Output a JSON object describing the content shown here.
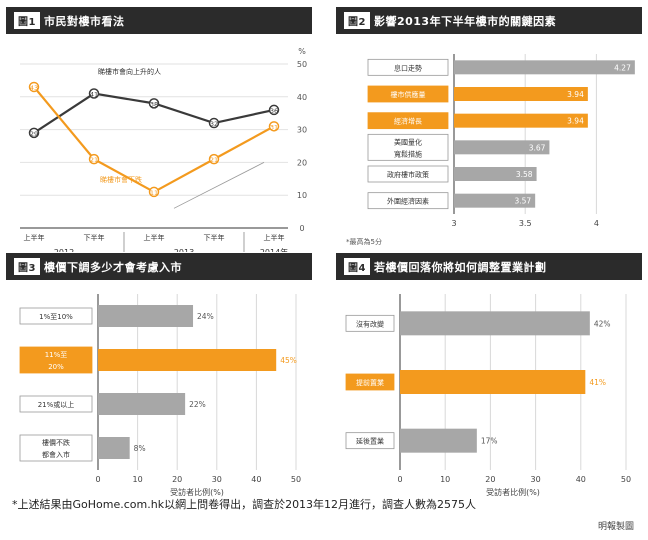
{
  "panel1": {
    "title_num": "圖1",
    "title": "市民對樓市看法",
    "unit": "%",
    "series_a_label": "睇樓市會向上升的人",
    "series_b_label": "睇樓市會下跌",
    "half_labels": [
      "上半年",
      "下半年",
      "上半年",
      "下半年",
      "上半年"
    ],
    "year_labels": [
      "2012",
      "2013",
      "2014年"
    ],
    "y_ticks": [
      "50",
      "40",
      "30",
      "20",
      "10",
      "0"
    ]
  },
  "panel2": {
    "title_num": "圖2",
    "title": "影響2013年下半年樓市的關鍵因素",
    "x_ticks": [
      "3",
      "3.5",
      "4"
    ],
    "note": "*最高為5分"
  },
  "panel3": {
    "title_num": "圖3",
    "title": "樓價下調多少才會考慮入市",
    "x_ticks": [
      "0",
      "10",
      "20",
      "30",
      "40",
      "50"
    ],
    "xlabel": "受訪者比例(%)"
  },
  "panel4": {
    "title_num": "圖4",
    "title": "若樓價回落你將如何調整置業計劃",
    "x_ticks": [
      "0",
      "10",
      "20",
      "30",
      "40",
      "50"
    ],
    "xlabel": "受訪者比例(%)"
  },
  "footer": {
    "note": "*上述結果由GoHome.com.hk以網上問卷得出，調查於2013年12月進行，調查人數為2575人",
    "credit": "明報製圖"
  },
  "colors": {
    "orange": "#f39a1e",
    "gray": "#a7a7a7",
    "dark": "#2b2b2b",
    "line_dark": "#3a3a3a"
  },
  "chart_data": [
    {
      "type": "line",
      "x": [
        "2012上半年",
        "2012下半年",
        "2013上半年",
        "2013下半年",
        "2014上半年"
      ],
      "ylim": [
        0,
        50
      ],
      "series": [
        {
          "name": "睇樓市會向上升的人",
          "values": [
            29,
            41,
            38,
            32,
            36
          ]
        },
        {
          "name": "睇樓市會下跌",
          "values": [
            43,
            21,
            11,
            21,
            31
          ]
        }
      ]
    },
    {
      "type": "bar",
      "categories": [
        "息口走勢",
        "樓市供應量",
        "經濟增長",
        "美國量化寬鬆措施",
        "政府樓市政策",
        "外圍經濟因素"
      ],
      "values": [
        4.27,
        3.94,
        3.94,
        3.67,
        3.58,
        3.57
      ],
      "value_labels": [
        "4.27",
        "3.94",
        "3.94",
        "3.67",
        "3.58",
        "3.57"
      ],
      "highlight": [
        false,
        true,
        true,
        false,
        false,
        false
      ],
      "xlim": [
        3,
        4.25
      ]
    },
    {
      "type": "bar",
      "categories": [
        "1%至10%",
        "11%至20%",
        "21%或以上",
        "樓價不跌都會入市"
      ],
      "values": [
        24,
        45,
        22,
        8
      ],
      "value_labels": [
        "24%",
        "45%",
        "22%",
        "8%"
      ],
      "highlight": [
        false,
        true,
        false,
        false
      ],
      "xlim": [
        0,
        50
      ]
    },
    {
      "type": "bar",
      "categories": [
        "沒有改變",
        "提前置業",
        "延後置業"
      ],
      "values": [
        42,
        41,
        17
      ],
      "value_labels": [
        "42%",
        "41%",
        "17%"
      ],
      "highlight": [
        false,
        true,
        false
      ],
      "xlim": [
        0,
        50
      ]
    }
  ]
}
